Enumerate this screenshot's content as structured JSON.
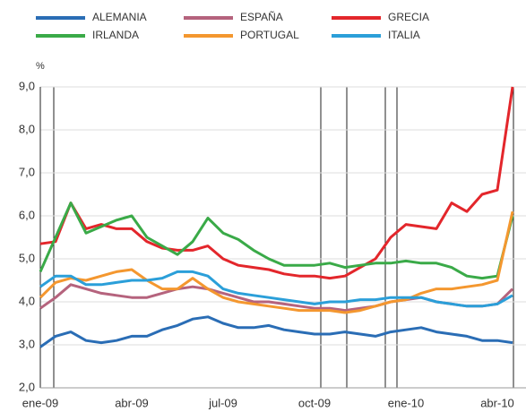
{
  "chart_data": {
    "type": "line",
    "y_label": "%",
    "categories": [
      "ene-09",
      null,
      null,
      null,
      null,
      null,
      "abr-09",
      null,
      null,
      null,
      null,
      null,
      "jul-09",
      null,
      null,
      null,
      null,
      null,
      "oct-09",
      null,
      null,
      null,
      null,
      null,
      "ene-10",
      null,
      null,
      null,
      null,
      null,
      "abr-10",
      null
    ],
    "series": [
      {
        "name": "ALEMANIA",
        "color": "#2a6db5",
        "values": [
          2.95,
          3.2,
          3.3,
          3.1,
          3.05,
          3.1,
          3.2,
          3.2,
          3.35,
          3.45,
          3.6,
          3.65,
          3.5,
          3.4,
          3.4,
          3.45,
          3.35,
          3.3,
          3.25,
          3.25,
          3.3,
          3.25,
          3.2,
          3.3,
          3.35,
          3.4,
          3.3,
          3.25,
          3.2,
          3.1,
          3.1,
          3.05
        ]
      },
      {
        "name": "ESPAÑA",
        "color": "#b5637d",
        "values": [
          3.85,
          4.1,
          4.4,
          4.3,
          4.2,
          4.15,
          4.1,
          4.1,
          4.2,
          4.3,
          4.35,
          4.3,
          4.2,
          4.1,
          4.0,
          4.0,
          3.95,
          3.9,
          3.85,
          3.85,
          3.8,
          3.85,
          3.9,
          4.0,
          4.05,
          4.1,
          4.0,
          3.95,
          3.9,
          3.9,
          3.95,
          4.3
        ]
      },
      {
        "name": "GRECIA",
        "color": "#e3262b",
        "values": [
          5.35,
          5.4,
          6.3,
          5.7,
          5.8,
          5.7,
          5.7,
          5.4,
          5.25,
          5.2,
          5.2,
          5.3,
          5.0,
          4.85,
          4.8,
          4.75,
          4.65,
          4.6,
          4.6,
          4.55,
          4.6,
          4.8,
          5.0,
          5.5,
          5.8,
          5.75,
          5.7,
          6.3,
          6.1,
          6.5,
          6.6,
          9.0
        ]
      },
      {
        "name": "IRLANDA",
        "color": "#3aaa48",
        "values": [
          4.7,
          5.5,
          6.3,
          5.6,
          5.75,
          5.9,
          6.0,
          5.5,
          5.3,
          5.1,
          5.4,
          5.95,
          5.6,
          5.45,
          5.2,
          5.0,
          4.85,
          4.85,
          4.85,
          4.9,
          4.8,
          4.85,
          4.9,
          4.9,
          4.95,
          4.9,
          4.9,
          4.8,
          4.6,
          4.55,
          4.6,
          6.0
        ]
      },
      {
        "name": "PORTUGAL",
        "color": "#f4972f",
        "values": [
          4.1,
          4.45,
          4.55,
          4.5,
          4.6,
          4.7,
          4.75,
          4.5,
          4.3,
          4.3,
          4.55,
          4.3,
          4.1,
          4.0,
          3.95,
          3.9,
          3.85,
          3.8,
          3.8,
          3.8,
          3.75,
          3.8,
          3.9,
          4.0,
          4.05,
          4.2,
          4.3,
          4.3,
          4.35,
          4.4,
          4.5,
          6.1
        ]
      },
      {
        "name": "ITALIA",
        "color": "#2b9fd9",
        "values": [
          4.35,
          4.6,
          4.6,
          4.4,
          4.4,
          4.45,
          4.5,
          4.5,
          4.55,
          4.7,
          4.7,
          4.6,
          4.3,
          4.2,
          4.15,
          4.1,
          4.05,
          4.0,
          3.95,
          4.0,
          4.0,
          4.05,
          4.05,
          4.1,
          4.1,
          4.1,
          4.0,
          3.95,
          3.9,
          3.9,
          3.95,
          4.15
        ]
      }
    ],
    "ylim": [
      2,
      9
    ],
    "yticks": [
      {
        "value": 2,
        "label": "2,0"
      },
      {
        "value": 3,
        "label": "3,0"
      },
      {
        "value": 4,
        "label": "4,0"
      },
      {
        "value": 5,
        "label": "5,0"
      },
      {
        "value": 6,
        "label": "6,0"
      },
      {
        "value": 7,
        "label": "7,0"
      },
      {
        "value": 8,
        "label": "8,0"
      },
      {
        "value": 9,
        "label": "9,0"
      }
    ],
    "grid": true
  }
}
